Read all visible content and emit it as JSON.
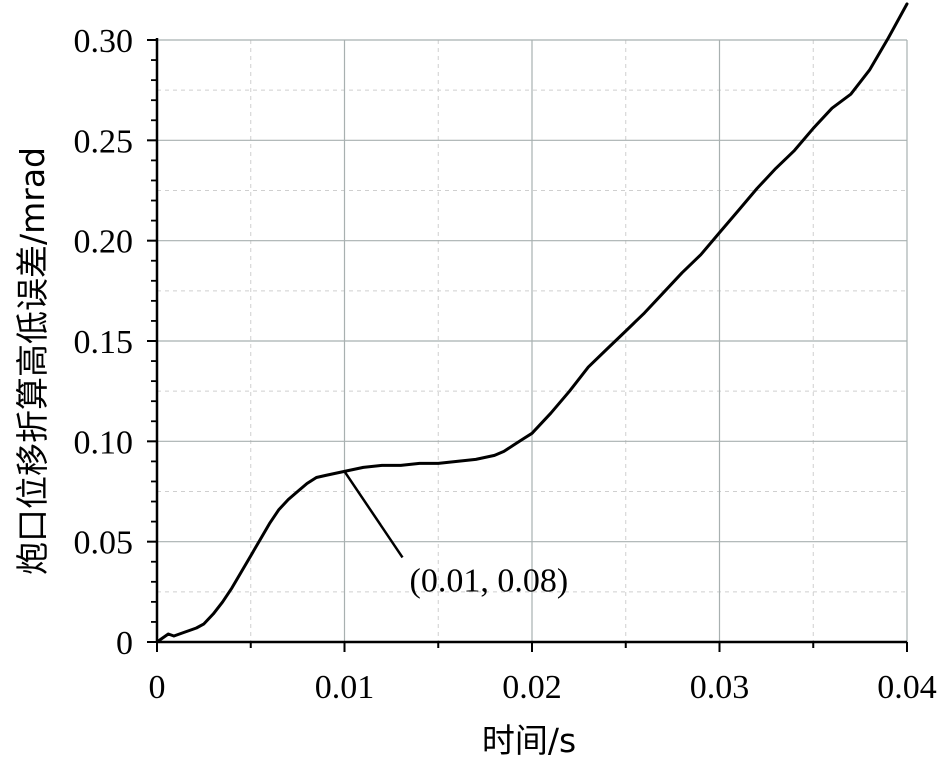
{
  "chart_data": {
    "type": "line",
    "title": "",
    "xlabel": "时间/s",
    "ylabel": "炮口位移折算高低误差/mrad",
    "xlim": [
      0,
      0.04
    ],
    "ylim": [
      0,
      0.3
    ],
    "grid": true,
    "x_ticks": [
      {
        "value": 0,
        "label": "0"
      },
      {
        "value": 0.01,
        "label": "0.01"
      },
      {
        "value": 0.02,
        "label": "0.02"
      },
      {
        "value": 0.03,
        "label": "0.03"
      },
      {
        "value": 0.04,
        "label": "0.04"
      }
    ],
    "y_ticks": [
      {
        "value": 0,
        "label": "0"
      },
      {
        "value": 0.05,
        "label": "0.05"
      },
      {
        "value": 0.1,
        "label": "0.10"
      },
      {
        "value": 0.15,
        "label": "0.15"
      },
      {
        "value": 0.2,
        "label": "0.20"
      },
      {
        "value": 0.25,
        "label": "0.25"
      },
      {
        "value": 0.3,
        "label": "0.30"
      }
    ],
    "series": [
      {
        "color": "#000000",
        "x": [
          0,
          0.0003,
          0.0006,
          0.0009,
          0.0012,
          0.0015,
          0.0018,
          0.0021,
          0.0025,
          0.003,
          0.0035,
          0.004,
          0.0045,
          0.005,
          0.0055,
          0.006,
          0.0065,
          0.007,
          0.0075,
          0.008,
          0.0085,
          0.009,
          0.0095,
          0.01,
          0.011,
          0.012,
          0.013,
          0.014,
          0.015,
          0.016,
          0.017,
          0.018,
          0.0185,
          0.019,
          0.0195,
          0.02,
          0.021,
          0.022,
          0.023,
          0.024,
          0.025,
          0.026,
          0.027,
          0.028,
          0.029,
          0.03,
          0.031,
          0.032,
          0.033,
          0.034,
          0.035,
          0.036,
          0.037,
          0.038,
          0.039,
          0.04
        ],
        "y": [
          0,
          0.002,
          0.004,
          0.003,
          0.004,
          0.005,
          0.006,
          0.007,
          0.009,
          0.014,
          0.02,
          0.027,
          0.035,
          0.043,
          0.051,
          0.059,
          0.066,
          0.071,
          0.075,
          0.079,
          0.082,
          0.083,
          0.084,
          0.085,
          0.087,
          0.088,
          0.088,
          0.089,
          0.089,
          0.09,
          0.091,
          0.093,
          0.095,
          0.098,
          0.101,
          0.104,
          0.114,
          0.125,
          0.137,
          0.146,
          0.155,
          0.164,
          0.174,
          0.184,
          0.193,
          0.204,
          0.215,
          0.226,
          0.236,
          0.245,
          0.256,
          0.266,
          0.273,
          0.285,
          0.301,
          0.318
        ]
      }
    ],
    "annotations": [
      {
        "text": "(0.01, 0.08)",
        "x": 0.01,
        "y": 0.085
      }
    ]
  }
}
